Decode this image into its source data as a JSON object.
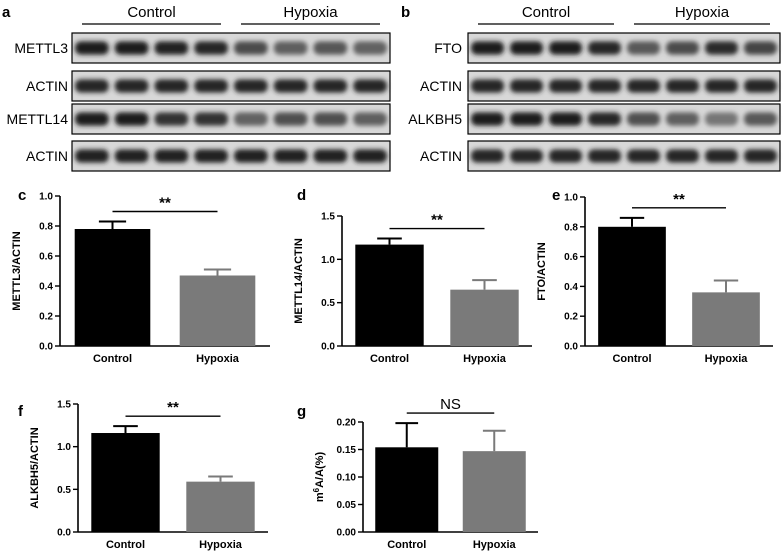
{
  "panel_a": {
    "letter": "a",
    "group_labels": [
      "Control",
      "Hypoxia"
    ],
    "rows": [
      {
        "label": "METTL3",
        "intensity": [
          0.95,
          0.95,
          0.92,
          0.9,
          0.72,
          0.62,
          0.66,
          0.6
        ]
      },
      {
        "label": "ACTIN",
        "intensity": [
          0.9,
          0.9,
          0.9,
          0.9,
          0.9,
          0.9,
          0.9,
          0.9
        ]
      },
      {
        "label": "METTL14",
        "intensity": [
          0.95,
          0.95,
          0.85,
          0.85,
          0.6,
          0.7,
          0.7,
          0.62
        ]
      },
      {
        "label": "ACTIN",
        "intensity": [
          0.92,
          0.92,
          0.92,
          0.92,
          0.92,
          0.92,
          0.92,
          0.92
        ]
      }
    ]
  },
  "panel_b": {
    "letter": "b",
    "group_labels": [
      "Control",
      "Hypoxia"
    ],
    "rows": [
      {
        "label": "FTO",
        "intensity": [
          0.95,
          0.95,
          0.95,
          0.9,
          0.65,
          0.72,
          0.88,
          0.75
        ]
      },
      {
        "label": "ACTIN",
        "intensity": [
          0.9,
          0.9,
          0.9,
          0.9,
          0.9,
          0.9,
          0.9,
          0.9
        ]
      },
      {
        "label": "ALKBH5",
        "intensity": [
          0.95,
          0.95,
          0.95,
          0.9,
          0.7,
          0.62,
          0.5,
          0.65
        ]
      },
      {
        "label": "ACTIN",
        "intensity": [
          0.9,
          0.9,
          0.9,
          0.9,
          0.9,
          0.9,
          0.9,
          0.9
        ]
      }
    ]
  },
  "chart_data": [
    {
      "panel": "c",
      "type": "bar",
      "categories": [
        "Control",
        "Hypoxia"
      ],
      "values": [
        0.78,
        0.47
      ],
      "errors": [
        0.05,
        0.04
      ],
      "ylabel": "METTL3/ACTIN",
      "ylim": [
        0,
        1.0
      ],
      "yticks": [
        "0.0",
        "0.2",
        "0.4",
        "0.6",
        "0.8",
        "1.0"
      ],
      "significance": "**",
      "colors": [
        "#000000",
        "#7a7a7a"
      ]
    },
    {
      "panel": "d",
      "type": "bar",
      "categories": [
        "Control",
        "Hypoxia"
      ],
      "values": [
        1.17,
        0.65
      ],
      "errors": [
        0.07,
        0.11
      ],
      "ylabel": "METTL14/ACTIN",
      "ylim": [
        0,
        1.5
      ],
      "yticks": [
        "0.0",
        "0.5",
        "1.0",
        "1.5"
      ],
      "significance": "**",
      "colors": [
        "#000000",
        "#7a7a7a"
      ]
    },
    {
      "panel": "e",
      "type": "bar",
      "categories": [
        "Control",
        "Hypoxia"
      ],
      "values": [
        0.8,
        0.36
      ],
      "errors": [
        0.06,
        0.08
      ],
      "ylabel": "FTO/ACTIN",
      "ylim": [
        0,
        1.0
      ],
      "yticks": [
        "0.0",
        "0.2",
        "0.4",
        "0.6",
        "0.8",
        "1.0"
      ],
      "significance": "**",
      "colors": [
        "#000000",
        "#7a7a7a"
      ]
    },
    {
      "panel": "f",
      "type": "bar",
      "categories": [
        "Control",
        "Hypoxia"
      ],
      "values": [
        1.16,
        0.59
      ],
      "errors": [
        0.08,
        0.06
      ],
      "ylabel": "ALKBH5/ACTIN",
      "ylim": [
        0,
        1.5
      ],
      "yticks": [
        "0.0",
        "0.5",
        "1.0",
        "1.5"
      ],
      "significance": "**",
      "colors": [
        "#000000",
        "#7a7a7a"
      ]
    },
    {
      "panel": "g",
      "type": "bar",
      "categories": [
        "Control",
        "Hypoxia"
      ],
      "values": [
        0.154,
        0.147
      ],
      "errors": [
        0.044,
        0.037
      ],
      "ylabel": "m6A/A(%)",
      "ylabel_parts": [
        "m",
        "6",
        "A/A(%)"
      ],
      "ylim": [
        0,
        0.2
      ],
      "yticks": [
        "0.00",
        "0.05",
        "0.10",
        "0.15",
        "0.20"
      ],
      "significance": "NS",
      "colors": [
        "#000000",
        "#7a7a7a"
      ]
    }
  ]
}
